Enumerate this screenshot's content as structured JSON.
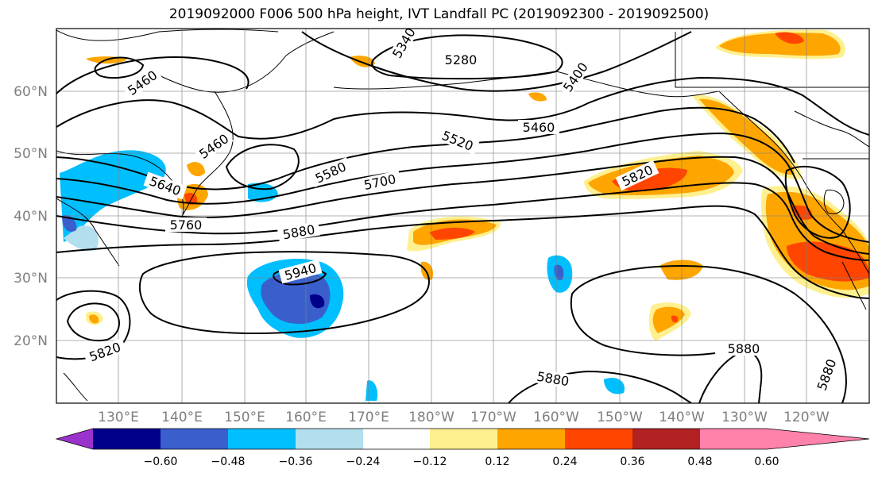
{
  "title": "2019092000 F006 500 hPa height, IVT Landfall PC (2019092300 - 2019092500)",
  "lat_ticks": [
    "60°N",
    "50°N",
    "40°N",
    "30°N",
    "20°N"
  ],
  "lon_ticks": [
    "130°E",
    "140°E",
    "150°E",
    "160°E",
    "170°E",
    "180°W",
    "170°W",
    "160°W",
    "150°W",
    "140°W",
    "130°W",
    "120°W"
  ],
  "contour_labels": [
    "5340",
    "5280",
    "5460",
    "5400",
    "5460",
    "5520",
    "5460",
    "5640",
    "5580",
    "5700",
    "5820",
    "5760",
    "5880",
    "5940",
    "5820",
    "5880",
    "5880",
    "5880"
  ],
  "colorbar": {
    "ticks": [
      "−0.60",
      "−0.48",
      "−0.36",
      "−0.24",
      "−0.12",
      "0.12",
      "0.24",
      "0.36",
      "0.48",
      "0.60"
    ],
    "colors": [
      "#9a32cd",
      "#00008b",
      "#3a5fcd",
      "#00bfff",
      "#b2dfee",
      "#ffffff",
      "#fff08f",
      "#ffa500",
      "#ff4500",
      "#b22222",
      "#ff82ab"
    ]
  },
  "colors": {
    "neg_strong": "#3a5fcd",
    "neg": "#00bfff",
    "neg_weak": "#b2dfee",
    "pos_weak": "#fff08f",
    "pos": "#ffa500",
    "pos_strong": "#ff4500",
    "pos_max": "#b22222",
    "neg_max": "#00008b"
  }
}
